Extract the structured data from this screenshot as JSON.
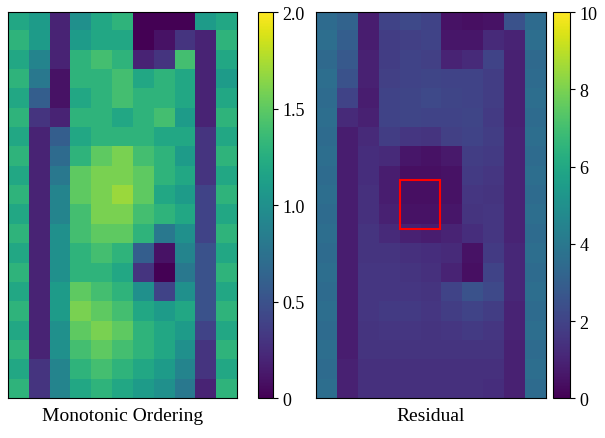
{
  "chart_data": [
    {
      "type": "heatmap",
      "xlabel": "Monotonic Ordering",
      "tick_labels": false,
      "cells": [
        [
          1.2,
          1.1,
          0.2,
          1.0,
          1.2,
          1.3,
          0.0,
          0.0,
          0.0,
          1.1,
          1.2
        ],
        [
          1.3,
          1.1,
          0.2,
          1.1,
          1.2,
          1.2,
          0.0,
          0.1,
          0.3,
          0.2,
          1.3
        ],
        [
          1.2,
          0.9,
          0.2,
          1.3,
          1.4,
          1.3,
          0.2,
          0.3,
          1.4,
          0.2,
          1.2
        ],
        [
          1.3,
          0.8,
          0.1,
          1.3,
          1.3,
          1.4,
          1.2,
          1.3,
          1.2,
          0.2,
          1.1
        ],
        [
          1.2,
          0.6,
          0.1,
          1.2,
          1.3,
          1.4,
          1.3,
          1.3,
          1.2,
          0.2,
          1.2
        ],
        [
          1.3,
          0.3,
          0.2,
          1.3,
          1.3,
          1.2,
          1.3,
          1.4,
          1.1,
          0.2,
          1.3
        ],
        [
          1.2,
          0.2,
          0.6,
          1.2,
          1.3,
          1.3,
          1.3,
          1.2,
          1.2,
          0.3,
          1.2
        ],
        [
          1.3,
          0.2,
          0.7,
          1.3,
          1.5,
          1.6,
          1.4,
          1.3,
          1.1,
          0.3,
          1.3
        ],
        [
          1.2,
          0.2,
          0.8,
          1.5,
          1.6,
          1.6,
          1.5,
          1.3,
          1.2,
          0.3,
          1.2
        ],
        [
          1.3,
          0.2,
          0.9,
          1.5,
          1.6,
          1.7,
          1.5,
          1.2,
          1.1,
          0.4,
          1.3
        ],
        [
          1.2,
          0.2,
          0.9,
          1.4,
          1.6,
          1.6,
          1.4,
          1.3,
          1.2,
          0.4,
          1.2
        ],
        [
          1.3,
          0.2,
          1.0,
          1.4,
          1.5,
          1.5,
          1.3,
          0.8,
          1.0,
          0.4,
          1.3
        ],
        [
          1.2,
          0.2,
          1.0,
          1.3,
          1.4,
          1.3,
          0.6,
          0.1,
          0.9,
          0.5,
          1.2
        ],
        [
          1.3,
          0.2,
          1.0,
          1.3,
          1.3,
          1.2,
          0.3,
          0.0,
          0.8,
          0.5,
          1.3
        ],
        [
          1.2,
          0.2,
          1.1,
          1.5,
          1.4,
          1.3,
          1.0,
          0.4,
          1.0,
          0.5,
          1.2
        ],
        [
          1.3,
          0.2,
          1.1,
          1.6,
          1.5,
          1.4,
          1.2,
          1.1,
          1.2,
          0.5,
          1.3
        ],
        [
          1.2,
          0.2,
          1.0,
          1.5,
          1.6,
          1.5,
          1.3,
          1.2,
          1.1,
          0.4,
          1.2
        ],
        [
          1.3,
          0.2,
          1.0,
          1.4,
          1.5,
          1.4,
          1.3,
          1.2,
          1.0,
          0.3,
          1.3
        ],
        [
          1.2,
          0.3,
          0.9,
          1.3,
          1.4,
          1.3,
          1.2,
          1.1,
          0.9,
          0.3,
          1.2
        ],
        [
          1.3,
          0.3,
          0.9,
          1.2,
          1.3,
          1.2,
          1.1,
          1.0,
          0.8,
          0.2,
          1.3
        ]
      ],
      "colorbar": {
        "range": [
          0,
          2
        ],
        "ticks": [
          0,
          0.5,
          {
            "value": 1,
            "label": "1.0"
          },
          1.5,
          {
            "value": 2,
            "label": "2.0"
          }
        ]
      }
    },
    {
      "type": "heatmap",
      "xlabel": "Residual",
      "tick_labels": false,
      "cells": [
        [
          3.5,
          3.2,
          0.8,
          2.0,
          2.2,
          2.0,
          0.5,
          0.4,
          0.5,
          2.5,
          3.5
        ],
        [
          3.6,
          3.0,
          0.8,
          1.8,
          1.9,
          2.0,
          0.6,
          0.6,
          1.2,
          1.0,
          3.6
        ],
        [
          3.4,
          2.8,
          0.9,
          1.8,
          2.0,
          1.9,
          1.0,
          1.2,
          2.0,
          0.9,
          3.4
        ],
        [
          3.6,
          2.5,
          0.9,
          1.9,
          2.0,
          2.1,
          2.0,
          2.0,
          1.8,
          0.9,
          3.5
        ],
        [
          3.5,
          2.0,
          0.8,
          2.0,
          2.1,
          2.2,
          2.1,
          2.0,
          1.8,
          0.9,
          3.6
        ],
        [
          3.6,
          1.2,
          0.9,
          2.0,
          2.1,
          2.0,
          2.0,
          2.1,
          1.7,
          0.9,
          3.5
        ],
        [
          3.5,
          0.8,
          1.2,
          1.8,
          1.6,
          1.5,
          1.9,
          2.0,
          1.8,
          1.0,
          3.6
        ],
        [
          3.6,
          0.8,
          1.3,
          1.2,
          0.6,
          0.5,
          0.7,
          1.8,
          1.7,
          1.0,
          3.5
        ],
        [
          3.5,
          0.8,
          1.3,
          0.8,
          0.4,
          0.4,
          0.5,
          1.7,
          1.6,
          1.0,
          3.6
        ],
        [
          3.6,
          0.8,
          1.4,
          0.8,
          0.4,
          0.4,
          0.5,
          1.6,
          1.5,
          1.0,
          3.5
        ],
        [
          3.5,
          0.8,
          1.4,
          0.9,
          0.5,
          0.5,
          0.6,
          1.5,
          1.6,
          1.0,
          3.6
        ],
        [
          3.6,
          0.8,
          1.5,
          1.2,
          0.9,
          0.8,
          1.0,
          1.3,
          1.6,
          1.0,
          3.5
        ],
        [
          3.5,
          0.8,
          1.5,
          1.5,
          1.4,
          1.3,
          1.2,
          0.5,
          1.7,
          1.1,
          3.6
        ],
        [
          3.6,
          0.8,
          1.6,
          1.6,
          1.5,
          1.4,
          1.0,
          0.4,
          2.0,
          1.1,
          3.5
        ],
        [
          3.5,
          0.8,
          1.6,
          1.6,
          1.6,
          1.5,
          2.0,
          2.5,
          2.2,
          1.1,
          3.6
        ],
        [
          3.6,
          0.8,
          1.6,
          1.7,
          1.7,
          1.6,
          1.8,
          2.0,
          1.8,
          1.0,
          3.5
        ],
        [
          3.5,
          0.8,
          1.5,
          1.6,
          1.6,
          1.5,
          1.6,
          1.7,
          1.6,
          1.0,
          3.6
        ],
        [
          3.6,
          0.8,
          1.5,
          1.5,
          1.5,
          1.5,
          1.5,
          1.5,
          1.5,
          0.9,
          3.5
        ],
        [
          3.5,
          0.9,
          1.4,
          1.4,
          1.4,
          1.4,
          1.4,
          1.4,
          1.4,
          0.9,
          3.6
        ],
        [
          3.6,
          0.9,
          1.4,
          1.4,
          1.4,
          1.4,
          1.4,
          1.4,
          1.3,
          0.9,
          3.5
        ]
      ],
      "colorbar": {
        "range": [
          0,
          10
        ],
        "ticks": [
          0,
          2,
          4,
          6,
          8,
          10
        ]
      }
    }
  ]
}
